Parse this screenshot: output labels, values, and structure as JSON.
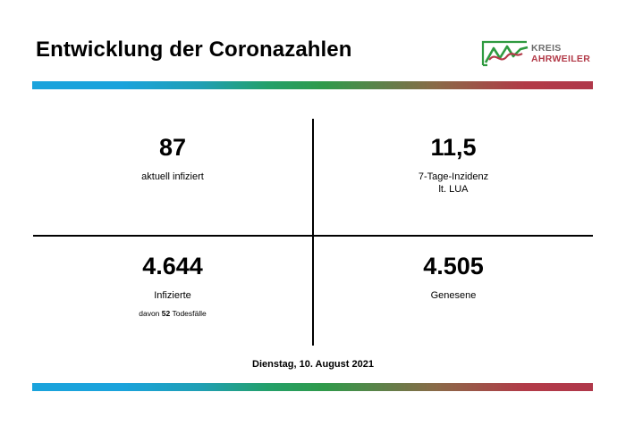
{
  "header": {
    "title": "Entwicklung der Coronazahlen"
  },
  "logo": {
    "line1": "KREIS",
    "line2": "AHRWEILER",
    "icon": "kreis-ahrweiler-logo-icon",
    "colors": {
      "green": "#2e9a3f",
      "red": "#b23a48",
      "gray": "#6b6b6b"
    }
  },
  "decor": {
    "bar_colors": [
      "#1aa3dc",
      "#23a06a",
      "#2f9a4a",
      "#b23a48"
    ]
  },
  "stats": {
    "infected_current": {
      "value": "87",
      "label": "aktuell infiziert"
    },
    "incidence": {
      "value": "11,5",
      "label_line1": "7-Tage-Inzidenz",
      "label_line2": "lt. LUA"
    },
    "infected_total": {
      "value": "4.644",
      "label": "Infizierte",
      "deaths_prefix": "davon",
      "deaths_value": "52",
      "deaths_suffix": "Todesfälle"
    },
    "recovered": {
      "value": "4.505",
      "label": "Genesene"
    }
  },
  "footer": {
    "date": "Dienstag, 10. August 2021"
  }
}
